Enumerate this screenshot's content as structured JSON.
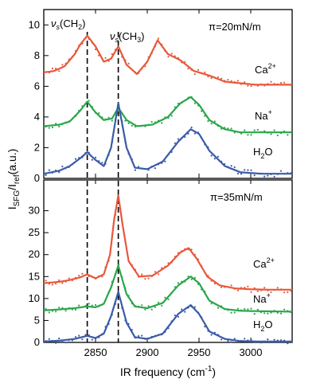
{
  "colors": {
    "ca": "#e8583a",
    "na": "#2aa64a",
    "h2o": "#3a5ba8"
  },
  "axes": {
    "xlabel_main": "IR frequency (cm",
    "xlabel_sup": "-1",
    "xlabel_end": ")",
    "ylabel_main": "I",
    "ylabel_sub1": "SFG",
    "ylabel_mid": "/I",
    "ylabel_sub2": "ref",
    "ylabel_end": "(a.u.)"
  },
  "peaks": {
    "ch2_label": "ν",
    "ch2_sub": "s",
    "ch2_group": "(CH",
    "ch2_group_sub": "2",
    "ch2_end": ")",
    "ch3_label": "ν",
    "ch3_sub": "s",
    "ch3_group": "(CH",
    "ch3_group_sub": "3",
    "ch3_end": ")"
  },
  "species": {
    "ca_base": "Ca",
    "ca_sup": "2+",
    "na_base": "Na",
    "na_sup": "+",
    "h2o_base": "H",
    "h2o_sub": "2",
    "h2o_end": "O"
  },
  "chart_data": [
    {
      "type": "line",
      "annotation": "π=20mN/m",
      "xlim": [
        2800,
        3040
      ],
      "ylim": [
        0,
        11
      ],
      "xticks": [
        2850,
        2900,
        2950,
        3000
      ],
      "yticks": [
        0,
        2,
        4,
        6,
        8,
        10
      ],
      "vlines": [
        2842,
        2872
      ],
      "series": [
        {
          "name": "Ca2+",
          "color": "#e8583a",
          "x": [
            2800,
            2810,
            2820,
            2830,
            2835,
            2842,
            2850,
            2858,
            2865,
            2872,
            2880,
            2890,
            2900,
            2910,
            2920,
            2932,
            2945,
            2960,
            2975,
            2990,
            3005,
            3020,
            3040
          ],
          "y": [
            6.9,
            7.0,
            7.3,
            8.1,
            8.7,
            9.3,
            8.6,
            7.6,
            7.8,
            8.6,
            7.4,
            6.8,
            7.6,
            9.0,
            8.1,
            7.7,
            7.0,
            6.7,
            6.3,
            6.2,
            6.1,
            6.1,
            6.1
          ]
        },
        {
          "name": "Na+",
          "color": "#2aa64a",
          "x": [
            2800,
            2815,
            2825,
            2835,
            2842,
            2850,
            2858,
            2866,
            2872,
            2880,
            2890,
            2905,
            2920,
            2932,
            2942,
            2950,
            2960,
            2975,
            2990,
            3010,
            3040
          ],
          "y": [
            3.4,
            3.5,
            3.7,
            4.4,
            5.0,
            4.3,
            3.8,
            3.9,
            4.6,
            3.8,
            3.4,
            3.5,
            4.0,
            4.9,
            5.3,
            4.8,
            3.8,
            3.2,
            3.0,
            3.0,
            3.0
          ]
        },
        {
          "name": "H2O",
          "color": "#3a5ba8",
          "x": [
            2800,
            2815,
            2825,
            2835,
            2842,
            2850,
            2858,
            2865,
            2872,
            2880,
            2888,
            2900,
            2915,
            2930,
            2942,
            2950,
            2960,
            2975,
            2990,
            3010,
            3040
          ],
          "y": [
            0.3,
            0.5,
            0.8,
            1.3,
            1.7,
            1.2,
            0.8,
            2.0,
            4.9,
            2.0,
            0.7,
            0.6,
            1.1,
            2.4,
            3.2,
            2.9,
            1.8,
            0.8,
            0.4,
            0.3,
            0.3
          ]
        }
      ]
    },
    {
      "type": "line",
      "annotation": "π=35mN/m",
      "xlim": [
        2800,
        3040
      ],
      "ylim": [
        0,
        37
      ],
      "xticks": [
        2850,
        2900,
        2950,
        3000
      ],
      "yticks": [
        0,
        5,
        10,
        15,
        20,
        25,
        30
      ],
      "vlines": [
        2842,
        2872
      ],
      "series": [
        {
          "name": "Ca2+",
          "color": "#e8583a",
          "x": [
            2800,
            2815,
            2825,
            2835,
            2842,
            2850,
            2858,
            2864,
            2868,
            2872,
            2876,
            2882,
            2892,
            2905,
            2920,
            2932,
            2940,
            2948,
            2958,
            2970,
            2985,
            3000,
            3020,
            3040
          ],
          "y": [
            13.5,
            13.8,
            14.2,
            14.8,
            15.5,
            14.6,
            15.5,
            20.0,
            28.0,
            33.5,
            27.0,
            18.5,
            15.0,
            15.2,
            17.5,
            20.5,
            21.5,
            19.0,
            15.0,
            13.0,
            12.3,
            12.1,
            12.0,
            12.0
          ]
        },
        {
          "name": "Na+",
          "color": "#2aa64a",
          "x": [
            2800,
            2815,
            2830,
            2842,
            2850,
            2858,
            2865,
            2872,
            2880,
            2888,
            2900,
            2915,
            2930,
            2942,
            2950,
            2960,
            2975,
            2990,
            3010,
            3040
          ],
          "y": [
            7.3,
            7.5,
            7.8,
            8.2,
            8.0,
            8.8,
            12.5,
            17.5,
            11.0,
            8.2,
            7.8,
            9.0,
            13.0,
            15.0,
            13.5,
            9.5,
            7.6,
            7.2,
            7.1,
            7.0
          ]
        },
        {
          "name": "H2O",
          "color": "#3a5ba8",
          "x": [
            2800,
            2815,
            2830,
            2842,
            2850,
            2858,
            2865,
            2872,
            2880,
            2888,
            2900,
            2915,
            2930,
            2942,
            2950,
            2960,
            2975,
            2990,
            3010,
            3040
          ],
          "y": [
            0.2,
            0.4,
            0.8,
            1.5,
            1.0,
            2.0,
            6.0,
            11.5,
            4.5,
            1.2,
            0.8,
            2.0,
            6.5,
            8.5,
            6.5,
            2.5,
            0.8,
            0.3,
            0.2,
            0.2
          ]
        }
      ]
    }
  ]
}
